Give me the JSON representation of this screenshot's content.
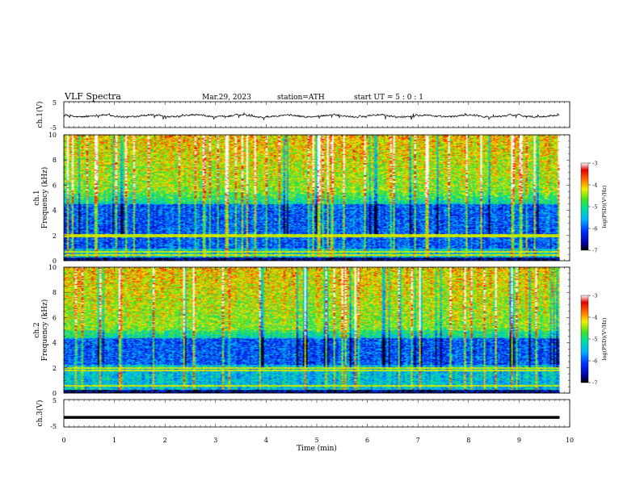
{
  "header": {
    "title": "VLF  Spectra",
    "date": "Mar.29, 2023",
    "station": "station=ATH",
    "start_ut": "start  UT  =   5  : 0  : 1"
  },
  "chart_data": [
    {
      "type": "line",
      "name": "ch1-waveform",
      "ylabel": "ch.1(V)",
      "ylim": [
        -5,
        5
      ],
      "yticks": [
        "5",
        "-5"
      ],
      "x_range_min": [
        0,
        9.8
      ],
      "baseline_v": -0.5,
      "noise_amplitude_v": 1.2
    },
    {
      "type": "heatmap",
      "name": "ch1-spectrogram",
      "ylabel_channel": "ch.1",
      "ylabel": "Frequency  (kHz)",
      "ylim": [
        0,
        10
      ],
      "yticks": [
        "0",
        "2",
        "4",
        "6",
        "8",
        "10"
      ],
      "x_range_min": [
        0,
        9.8
      ],
      "colorbar": {
        "label": "log(PSD)(V²/Hz)",
        "range": [
          -7,
          -3
        ],
        "ticks": [
          "-3",
          "-4",
          "-5",
          "-6",
          "-7"
        ]
      },
      "features": {
        "dark_band_khz": [
          1.0,
          4.5
        ],
        "bright_band_khz": [
          5.5,
          10
        ],
        "tone_lines_khz": [
          0.5,
          0.75,
          1.95,
          2.1
        ]
      }
    },
    {
      "type": "heatmap",
      "name": "ch2-spectrogram",
      "ylabel_channel": "ch.2",
      "ylabel": "Frequency  (kHz)",
      "ylim": [
        0,
        10
      ],
      "yticks": [
        "0",
        "2",
        "4",
        "6",
        "8",
        "10"
      ],
      "x_range_min": [
        0,
        9.8
      ],
      "colorbar": {
        "label": "log(PSD)(V²/Hz)",
        "range": [
          -7,
          -3
        ],
        "ticks": [
          "-3",
          "-4",
          "-5",
          "-6",
          "-7"
        ]
      },
      "features": {
        "dark_band_khz": [
          2.3,
          4.4
        ],
        "bright_band_khz": [
          5.0,
          10
        ],
        "tone_lines_khz": [
          0.6,
          1.8,
          2.0
        ]
      }
    },
    {
      "type": "line",
      "name": "ch3-waveform",
      "ylabel": "ch.3(V)",
      "ylim": [
        -5,
        5
      ],
      "yticks": [
        "5",
        "-5"
      ],
      "x_range_min": [
        0,
        9.8
      ],
      "baseline_v": -1.5
    }
  ],
  "xaxis": {
    "label": "Time  (min)",
    "ticks": [
      "0",
      "1",
      "2",
      "3",
      "4",
      "5",
      "6",
      "7",
      "8",
      "9",
      "10"
    ],
    "range": [
      0,
      10
    ]
  }
}
